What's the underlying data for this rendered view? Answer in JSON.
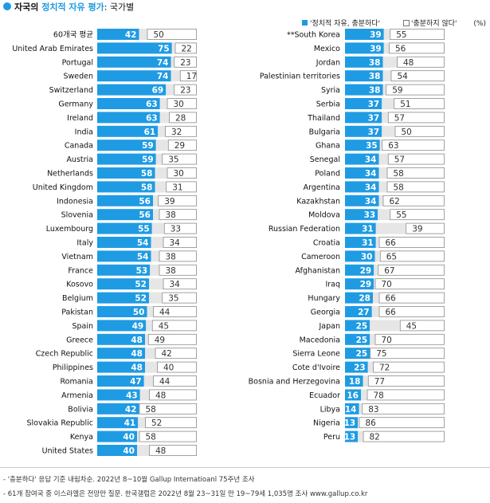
{
  "chart_data": {
    "type": "bar",
    "orientation": "horizontal",
    "stacked": true,
    "title_prefix": "자국의 ",
    "title_highlight": "정치적 자유 평가",
    "title_suffix": ": 국가별",
    "unit": "(%)",
    "series": [
      {
        "name": "'정치적 자유, 충분하다'",
        "color": "#1f9be3"
      },
      {
        "name": "'충분하지 않다'",
        "color": "#ffffff"
      }
    ],
    "gap_color": "#e6e6e6",
    "left_panel": [
      {
        "country": "60개국 평균",
        "yes": 42,
        "no": 50
      },
      {
        "country": "United Arab Emirates",
        "yes": 75,
        "no": 22
      },
      {
        "country": "Portugal",
        "yes": 74,
        "no": 23
      },
      {
        "country": "Sweden",
        "yes": 74,
        "no": 17
      },
      {
        "country": "Switzerland",
        "yes": 69,
        "no": 23
      },
      {
        "country": "Germany",
        "yes": 63,
        "no": 30
      },
      {
        "country": "Ireland",
        "yes": 63,
        "no": 28
      },
      {
        "country": "India",
        "yes": 61,
        "no": 32
      },
      {
        "country": "Canada",
        "yes": 59,
        "no": 29
      },
      {
        "country": "Austria",
        "yes": 59,
        "no": 35
      },
      {
        "country": "Netherlands",
        "yes": 58,
        "no": 30
      },
      {
        "country": "United Kingdom",
        "yes": 58,
        "no": 31
      },
      {
        "country": "Indonesia",
        "yes": 56,
        "no": 39
      },
      {
        "country": "Slovenia",
        "yes": 56,
        "no": 38
      },
      {
        "country": "Luxembourg",
        "yes": 55,
        "no": 33
      },
      {
        "country": "Italy",
        "yes": 54,
        "no": 34
      },
      {
        "country": "Vietnam",
        "yes": 54,
        "no": 38
      },
      {
        "country": "France",
        "yes": 53,
        "no": 38
      },
      {
        "country": "Kosovo",
        "yes": 52,
        "no": 34
      },
      {
        "country": "Belgium",
        "yes": 52,
        "no": 35
      },
      {
        "country": "Pakistan",
        "yes": 50,
        "no": 44
      },
      {
        "country": "Spain",
        "yes": 49,
        "no": 45
      },
      {
        "country": "Greece",
        "yes": 48,
        "no": 49
      },
      {
        "country": "Czech Republic",
        "yes": 48,
        "no": 42
      },
      {
        "country": "Philippines",
        "yes": 48,
        "no": 40
      },
      {
        "country": "Romania",
        "yes": 47,
        "no": 44
      },
      {
        "country": "Armenia",
        "yes": 43,
        "no": 48
      },
      {
        "country": "Bolivia",
        "yes": 42,
        "no": 58
      },
      {
        "country": "Slovakia Republic",
        "yes": 41,
        "no": 52
      },
      {
        "country": "Kenya",
        "yes": 40,
        "no": 58
      },
      {
        "country": "United States",
        "yes": 40,
        "no": 48
      }
    ],
    "right_panel": [
      {
        "country": "**South Korea",
        "yes": 39,
        "no": 55
      },
      {
        "country": "Mexico",
        "yes": 39,
        "no": 56
      },
      {
        "country": "Jordan",
        "yes": 38,
        "no": 48
      },
      {
        "country": "Palestinian territories",
        "yes": 38,
        "no": 54
      },
      {
        "country": "Syria",
        "yes": 38,
        "no": 59
      },
      {
        "country": "Serbia",
        "yes": 37,
        "no": 51
      },
      {
        "country": "Thailand",
        "yes": 37,
        "no": 57
      },
      {
        "country": "Bulgaria",
        "yes": 37,
        "no": 50
      },
      {
        "country": "Ghana",
        "yes": 35,
        "no": 63
      },
      {
        "country": "Senegal",
        "yes": 34,
        "no": 57
      },
      {
        "country": "Poland",
        "yes": 34,
        "no": 58
      },
      {
        "country": "Argentina",
        "yes": 34,
        "no": 58
      },
      {
        "country": "Kazakhstan",
        "yes": 34,
        "no": 62
      },
      {
        "country": "Moldova",
        "yes": 33,
        "no": 55
      },
      {
        "country": "Russian Federation",
        "yes": 31,
        "no": 39
      },
      {
        "country": "Croatia",
        "yes": 31,
        "no": 66
      },
      {
        "country": "Cameroon",
        "yes": 30,
        "no": 65
      },
      {
        "country": "Afghanistan",
        "yes": 29,
        "no": 67
      },
      {
        "country": "Iraq",
        "yes": 29,
        "no": 70
      },
      {
        "country": "Hungary",
        "yes": 28,
        "no": 66
      },
      {
        "country": "Georgia",
        "yes": 27,
        "no": 66
      },
      {
        "country": "Japan",
        "yes": 25,
        "no": 45
      },
      {
        "country": "Macedonia",
        "yes": 25,
        "no": 70
      },
      {
        "country": "Sierra Leone",
        "yes": 25,
        "no": 75
      },
      {
        "country": "Cote d'Ivoire",
        "yes": 23,
        "no": 72
      },
      {
        "country": "Bosnia and Herzegovina",
        "yes": 18,
        "no": 77
      },
      {
        "country": "Ecuador",
        "yes": 16,
        "no": 78
      },
      {
        "country": "Libya",
        "yes": 14,
        "no": 83
      },
      {
        "country": "Nigeria",
        "yes": 13,
        "no": 86
      },
      {
        "country": "Peru",
        "yes": 13,
        "no": 82
      }
    ],
    "footnotes": [
      "- '충분하다' 응답 기준 내림차순. 2022년 8~10월 Gallup Internatioanl 75주년 조사",
      "- 61개 참여국 중 이스라엘은 전망만 질문. 한국갤럽은 2022년 8월 23~31일 만 19~79세 1,035명 조사 www.gallup.co.kr"
    ]
  }
}
